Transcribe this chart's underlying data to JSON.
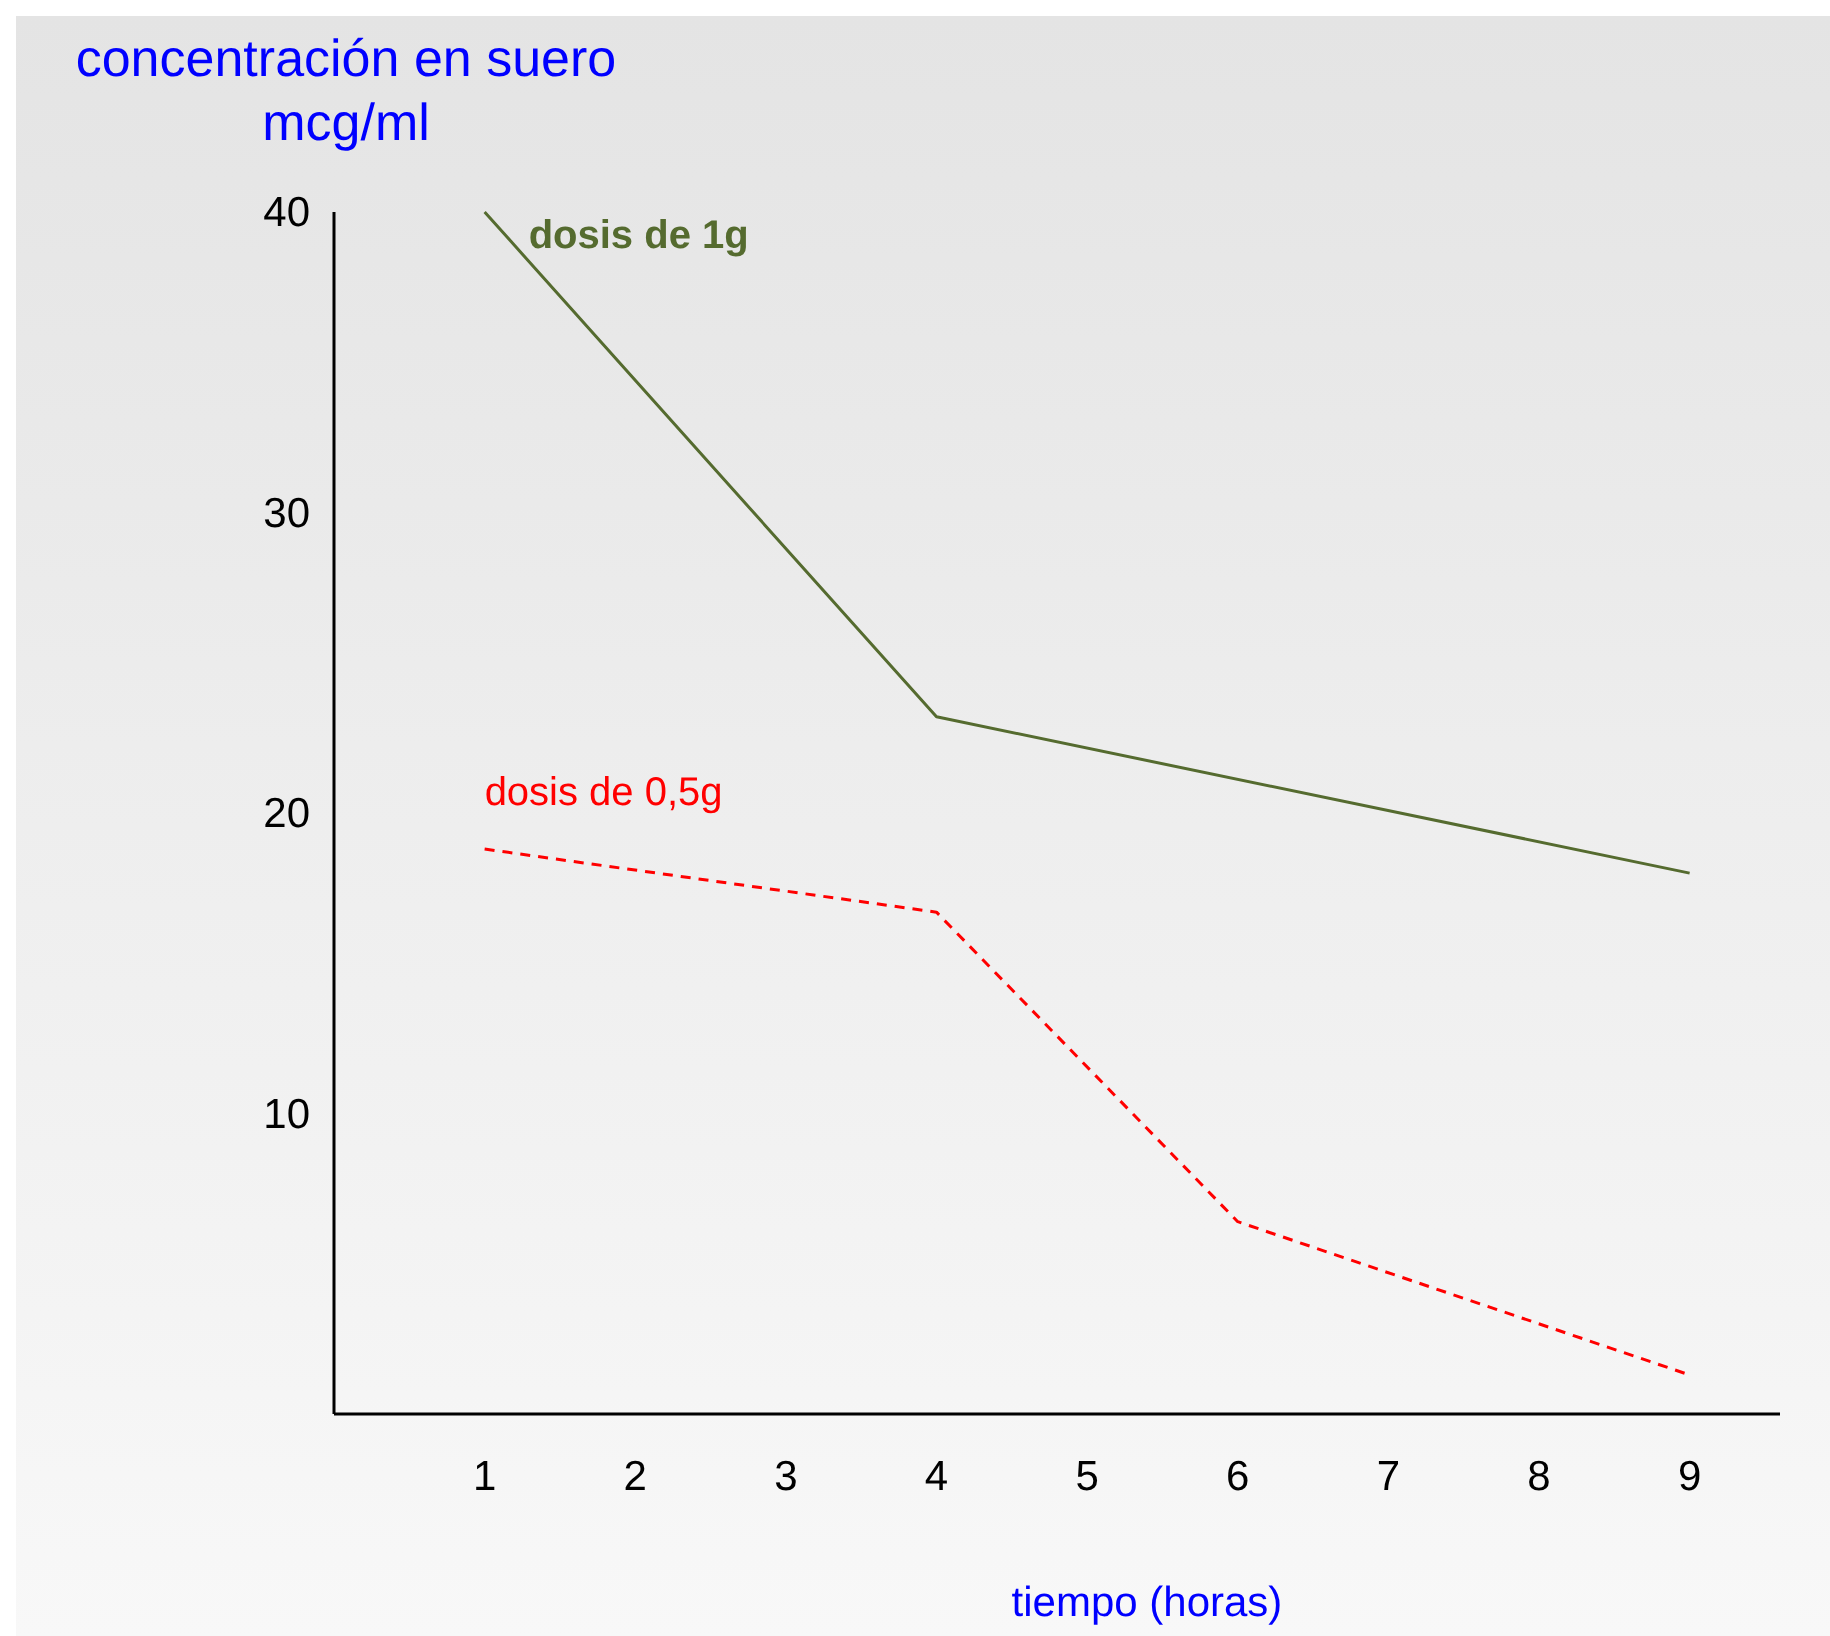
{
  "chart_data": {
    "type": "line",
    "ylabel": "concentración en suero mcg/ml",
    "xlabel": "tiempo (horas)",
    "xlim": [
      0,
      9.6
    ],
    "xticks": [
      1,
      2,
      3,
      4,
      5,
      6,
      7,
      8,
      9
    ],
    "ylim": [
      0,
      40
    ],
    "yticks": [
      10,
      20,
      30,
      40
    ],
    "grid": false,
    "marker": "none",
    "series": [
      {
        "name": "dosis de 1g",
        "color": "#556b2f",
        "line_style": "solid",
        "x": [
          1,
          4,
          9
        ],
        "values": [
          40,
          23.2,
          18.0
        ]
      },
      {
        "name": "dosis de 0,5g",
        "color": "#ff0000",
        "line_style": "dashed",
        "x": [
          1,
          4,
          6,
          9
        ],
        "values": [
          18.8,
          16.7,
          6.4,
          1.3
        ]
      }
    ]
  }
}
